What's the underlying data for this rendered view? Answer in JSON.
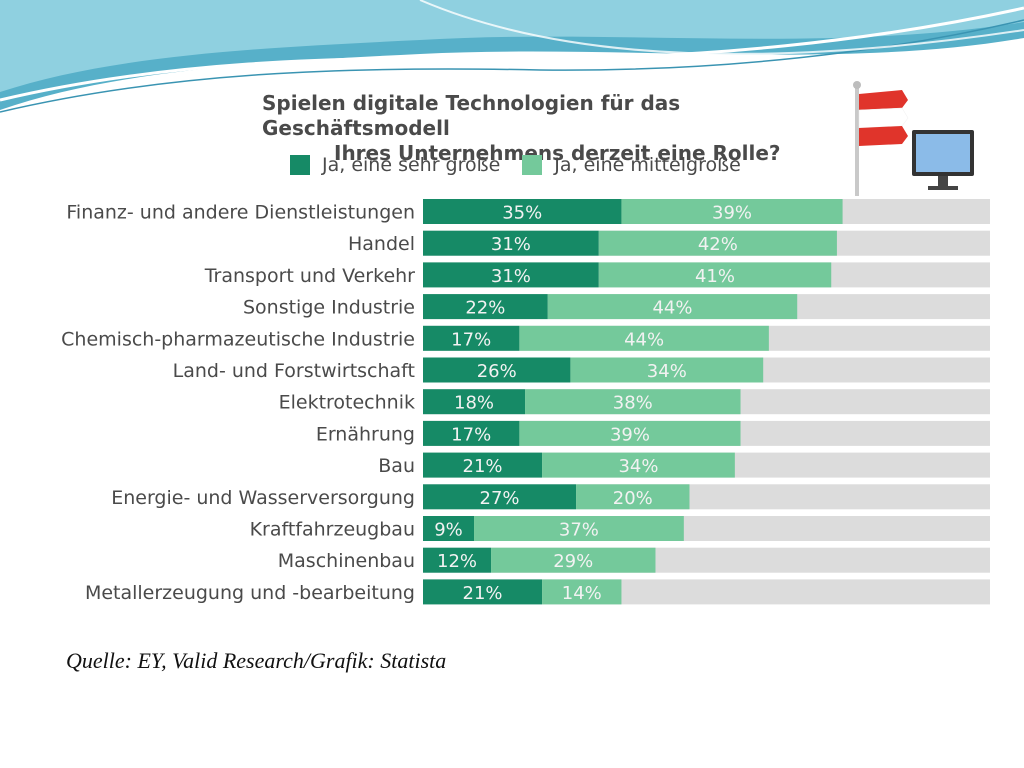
{
  "colors": {
    "primary": "#168a66",
    "secondary": "#74c99b",
    "remainder": "#dcdcdc",
    "bar_text": "#f2f2f2",
    "label_text": "#4a4a4a"
  },
  "legend": [
    {
      "label": "Ja, eine sehr große",
      "color": "#168a66"
    },
    {
      "label": "Ja, eine mittelgroße",
      "color": "#74c99b"
    }
  ],
  "source_text": "Quelle: EY, Valid Research/Grafik: Statista",
  "chart_data": {
    "type": "bar",
    "orientation": "horizontal",
    "stacked": true,
    "title": "Spielen digitale Technologien für das Geschäftsmodell Ihres Unternehmens derzeit eine Rolle?",
    "title_lines": [
      "Spielen digitale Technologien für das Geschäftsmodell",
      "Ihres Unternehmens derzeit eine Rolle?"
    ],
    "xlim": [
      0,
      100
    ],
    "unit": "%",
    "legend_position": "top",
    "grid": false,
    "categories": [
      "Finanz- und andere Dienstleistungen",
      "Handel",
      "Transport und Verkehr",
      "Sonstige Industrie",
      "Chemisch-pharmazeutische Industrie",
      "Land- und Forstwirtschaft",
      "Elektrotechnik",
      "Ernährung",
      "Bau",
      "Energie- und Wasserversorgung",
      "Kraftfahrzeugbau",
      "Maschinenbau",
      "Metallerzeugung und -bearbeitung"
    ],
    "series": [
      {
        "name": "Ja, eine sehr große",
        "values": [
          35,
          31,
          31,
          22,
          17,
          26,
          18,
          17,
          21,
          27,
          9,
          12,
          21
        ]
      },
      {
        "name": "Ja, eine mittelgroße",
        "values": [
          39,
          42,
          41,
          44,
          44,
          34,
          38,
          39,
          34,
          20,
          37,
          29,
          14
        ]
      }
    ]
  }
}
